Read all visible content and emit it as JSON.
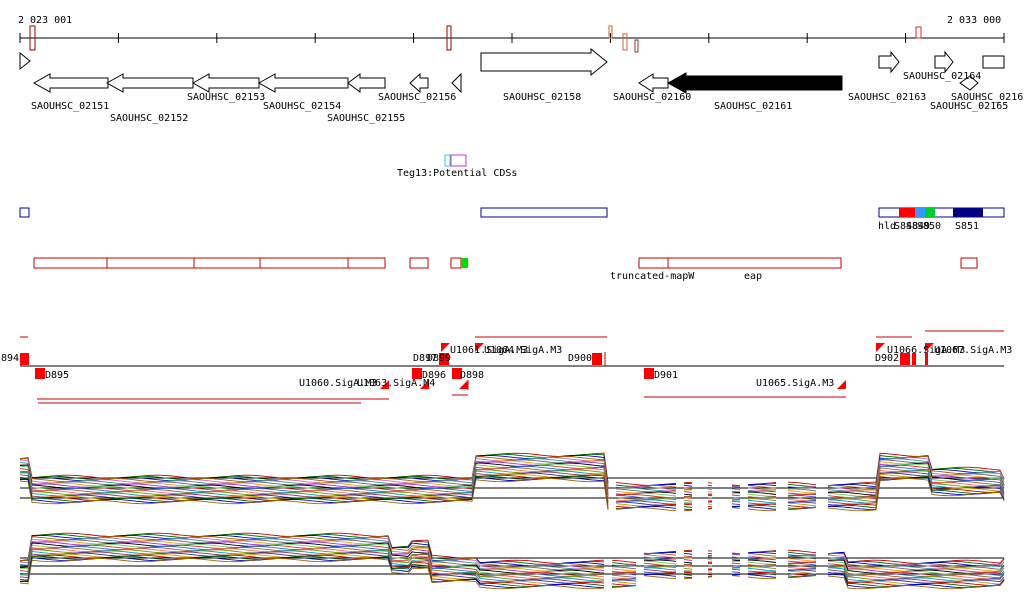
{
  "ruler": {
    "start_label": "2 023 001",
    "end_label": "2 033 000"
  },
  "genes": [
    "SAOUHSC_02151",
    "SAOUHSC_02152",
    "SAOUHSC_02153",
    "SAOUHSC_02154",
    "SAOUHSC_02155",
    "SAOUHSC_02156",
    "SAOUHSC_02158",
    "SAOUHSC_02160",
    "SAOUHSC_02161",
    "SAOUHSC_02163",
    "SAOUHSC_02164",
    "SAOUHSC_02165",
    "SAOUHSC_0216"
  ],
  "potential_cds": {
    "label": "Teg13:Potential CDSs"
  },
  "regulatory": [
    "hld",
    "S848",
    "S849",
    "S850",
    "S851"
  ],
  "annotations": {
    "truncated": "truncated-mapW",
    "eap": "eap"
  },
  "segments": [
    "894",
    "D895",
    "D896",
    "D897",
    "D898",
    "D899",
    "U1061.SigA.M3",
    "U1064.SigA.M3",
    "D900",
    "D901",
    "D902",
    "U1066.SigA.M3",
    "U1067.SigA.M3",
    "U1060.SigA.M3",
    "U1063.SigA.M4",
    "U1065.SigA.M3"
  ],
  "colors": {
    "gene_outline": "#000000",
    "gene_filled": "#000000",
    "feature_red": "#cc0000",
    "feature_blue": "#000099",
    "cyan": "#33cccc",
    "magenta": "#cc33cc",
    "green": "#00cc00",
    "navy": "#000080"
  }
}
